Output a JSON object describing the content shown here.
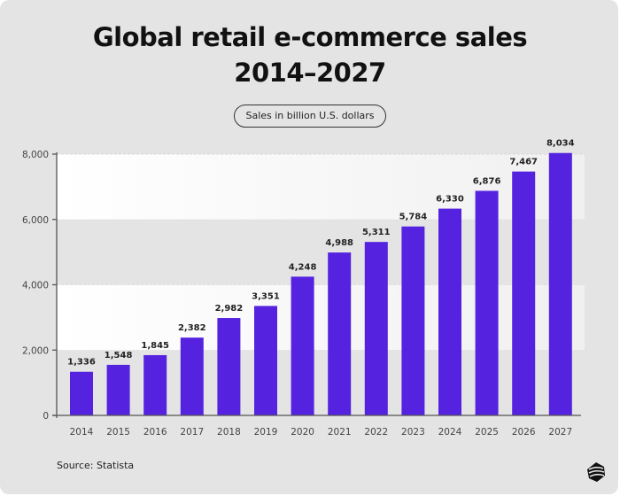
{
  "chart_data": {
    "type": "bar",
    "title": "Global retail e-commerce sales",
    "subtitle": "2014–2027",
    "legend_label": "Sales in billion U.S. dollars",
    "categories": [
      "2014",
      "2015",
      "2016",
      "2017",
      "2018",
      "2019",
      "2020",
      "2021",
      "2022",
      "2023",
      "2024",
      "2025",
      "2026",
      "2027"
    ],
    "values": [
      1336,
      1548,
      1845,
      2382,
      2982,
      3351,
      4248,
      4988,
      5311,
      5784,
      6330,
      6876,
      7467,
      8034
    ],
    "data_labels": [
      "1,336",
      "1,548",
      "1,845",
      "2,382",
      "2,982",
      "3,351",
      "4,248",
      "4,988",
      "5,311",
      "5,784",
      "6,330",
      "6,876",
      "7,467",
      "8,034"
    ],
    "yticks": [
      0,
      2000,
      4000,
      6000,
      8000
    ],
    "ytick_labels": [
      "0",
      "2,000",
      "4,000",
      "6,000",
      "8,000"
    ],
    "ylim": [
      0,
      8000
    ],
    "xlabel": "",
    "ylabel": "",
    "grid": true,
    "bar_color": "#5523df"
  },
  "source": "Source: Statista",
  "colors": {
    "background": "#e4e4e4",
    "bar": "#5523df"
  },
  "logo_icon": "brand-logo-icon"
}
